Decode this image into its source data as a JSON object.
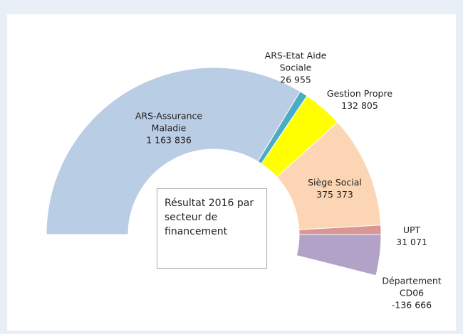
{
  "chart_data": {
    "type": "semi-donut",
    "title": "Résultat 2016 par secteur de financement",
    "categories": [
      "ARS-Assurance Maladie",
      "ARS-Etat Aide Sociale",
      "Gestion Propre",
      "Siège Social",
      "UPT",
      "Département CD06"
    ],
    "values": [
      1163836,
      26955,
      132805,
      375373,
      31071,
      -136666
    ],
    "value_labels": [
      "1 163 836",
      "26 955",
      "132 805",
      "375 373",
      "31 071",
      "-136 666"
    ],
    "colors": [
      "#b9cde5",
      "#4bacc6",
      "#ffff00",
      "#fcd5b5",
      "#d99694",
      "#b3a2c7"
    ]
  }
}
